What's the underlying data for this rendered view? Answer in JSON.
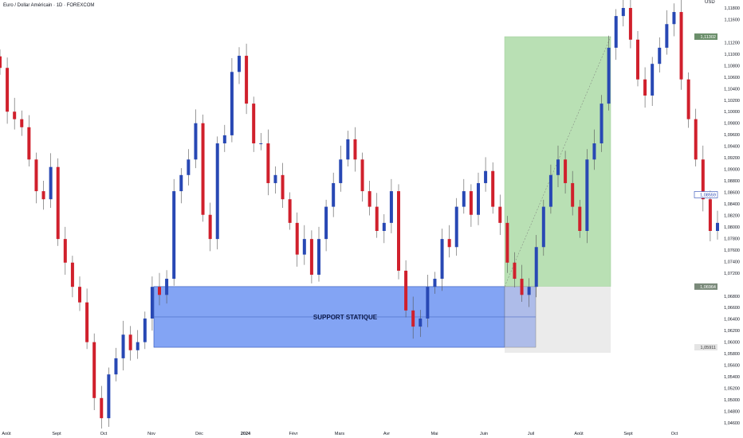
{
  "header": {
    "title": "Euro / Dollar Américain · 1D · FOREXCOM",
    "currency": "USD"
  },
  "colors": {
    "up": "#2848b4",
    "down": "#d0202c",
    "support_fill": "#5a86f0",
    "profit_fill": "#b9e0b4",
    "loss_fill": "#ebebeb",
    "profit_label": "#6b8f6b"
  },
  "chart_data": {
    "type": "candlestick",
    "symbol": "EURUSD",
    "interval": "1D",
    "ylim": [
      1.0452,
      1.1196
    ],
    "y_ticks": [
      "1,11800",
      "1,11600",
      "1,11200",
      "1,11000",
      "1,10800",
      "1,10600",
      "1,10400",
      "1,10200",
      "1,10000",
      "1,09800",
      "1,09600",
      "1,09400",
      "1,09200",
      "1,09000",
      "1,08800",
      "1,08600",
      "1,08400",
      "1,08200",
      "1,08000",
      "1,07800",
      "1,07600",
      "1,07400",
      "1,07200",
      "1,06800",
      "1,06600",
      "1,06400",
      "1,06200",
      "1,06000",
      "1,05800",
      "1,05600",
      "1,05400",
      "1,05200",
      "1,05000",
      "1,04800",
      "1,04600"
    ],
    "x_ticks": [
      "Août",
      "Sept",
      "Oct",
      "Nov",
      "Déc",
      "2024",
      "Févr",
      "Mars",
      "Avr",
      "Mai",
      "Juin",
      "Juil",
      "Août",
      "Sept",
      "Oct"
    ],
    "closes": [
      1.1076,
      1.1,
      1.0987,
      1.0973,
      1.0917,
      1.0862,
      1.0848,
      1.0904,
      1.0779,
      1.0738,
      1.0696,
      1.0669,
      1.06,
      1.0503,
      1.0468,
      1.0544,
      1.0572,
      1.0613,
      1.0586,
      1.06,
      1.0641,
      1.0696,
      1.0682,
      1.071,
      1.0862,
      1.089,
      1.0917,
      1.098,
      1.0821,
      1.0779,
      1.0945,
      1.0959,
      1.1069,
      1.1097,
      1.1014,
      1.0945,
      1.0945,
      1.0876,
      1.089,
      1.0848,
      1.0807,
      1.0752,
      1.0779,
      1.0717,
      1.0779,
      1.0835,
      1.0876,
      1.0917,
      1.0952,
      1.0917,
      1.0862,
      1.0835,
      1.0793,
      1.0807,
      1.0862,
      1.0724,
      1.0655,
      1.0627,
      1.0641,
      1.0696,
      1.071,
      1.0779,
      1.0765,
      1.0835,
      1.0862,
      1.0821,
      1.0876,
      1.0897,
      1.0835,
      1.0807,
      1.0738,
      1.071,
      1.0682,
      1.0696,
      1.0765,
      1.0835,
      1.089,
      1.0917,
      1.0876,
      1.0835,
      1.0793,
      1.0917,
      1.0945,
      1.1014,
      1.1111,
      1.1166,
      1.118,
      1.1125,
      1.1056,
      1.1028,
      1.1083,
      1.1111,
      1.1152,
      1.1173,
      1.1056,
      1.0987,
      1.0917,
      1.0848,
      1.0793,
      1.0807
    ],
    "price_labels": {
      "target": "1,11302",
      "current": "1,08559",
      "entry": "1,06964",
      "stop": "1,05911"
    },
    "support_zone": {
      "label": "SUPPORT STATIQUE",
      "top": 1.06964,
      "bottom": 1.05911
    },
    "long_position": {
      "entry": 1.06964,
      "target": 1.11302,
      "stop": 1.05911
    },
    "grid": false
  }
}
